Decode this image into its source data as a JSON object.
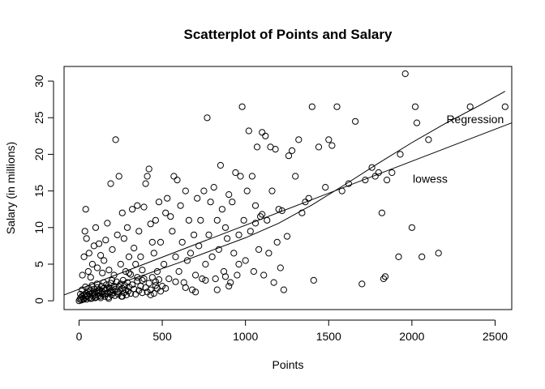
{
  "chart_data": {
    "type": "scatter",
    "title": "Scatterplot of Points and Salary",
    "xlabel": "Points",
    "ylabel": "Salary (in millions)",
    "xlim": [
      -90,
      2600
    ],
    "ylim": [
      -1.2,
      32.0
    ],
    "x_ticks": [
      0,
      500,
      1000,
      1500,
      2000,
      2500
    ],
    "y_ticks": [
      0,
      5,
      10,
      15,
      20,
      25,
      30
    ],
    "annotations": [
      {
        "text": "Regression",
        "x": 2380,
        "y": 24.8
      },
      {
        "text": "lowess",
        "x": 2110,
        "y": 16.7
      }
    ],
    "regression_line": [
      [
        -90,
        0.8
      ],
      [
        2600,
        24.3
      ]
    ],
    "lowess_line": [
      [
        0,
        0.9
      ],
      [
        200,
        2.1
      ],
      [
        400,
        3.6
      ],
      [
        600,
        5.2
      ],
      [
        800,
        6.9
      ],
      [
        1000,
        8.6
      ],
      [
        1200,
        10.6
      ],
      [
        1400,
        13.1
      ],
      [
        1600,
        15.9
      ],
      [
        1800,
        18.8
      ],
      [
        2000,
        21.6
      ],
      [
        2200,
        24.2
      ],
      [
        2400,
        26.6
      ],
      [
        2560,
        28.6
      ]
    ],
    "points": [
      [
        0,
        0
      ],
      [
        5,
        0.2
      ],
      [
        10,
        0.4
      ],
      [
        15,
        0.1
      ],
      [
        20,
        0.6
      ],
      [
        25,
        0.3
      ],
      [
        30,
        0.8
      ],
      [
        35,
        0.5
      ],
      [
        40,
        1.0
      ],
      [
        45,
        0.2
      ],
      [
        50,
        0.7
      ],
      [
        55,
        1.2
      ],
      [
        60,
        0.4
      ],
      [
        65,
        0.9
      ],
      [
        70,
        1.4
      ],
      [
        75,
        0.3
      ],
      [
        80,
        1.1
      ],
      [
        85,
        0.6
      ],
      [
        90,
        1.6
      ],
      [
        95,
        0.8
      ],
      [
        100,
        0.5
      ],
      [
        105,
        1.3
      ],
      [
        110,
        1.8
      ],
      [
        115,
        0.7
      ],
      [
        120,
        1.0
      ],
      [
        125,
        1.5
      ],
      [
        130,
        0.4
      ],
      [
        135,
        2.0
      ],
      [
        140,
        1.2
      ],
      [
        145,
        0.9
      ],
      [
        150,
        1.7
      ],
      [
        155,
        0.6
      ],
      [
        160,
        1.4
      ],
      [
        165,
        2.2
      ],
      [
        170,
        1.0
      ],
      [
        175,
        0.5
      ],
      [
        180,
        1.8
      ],
      [
        185,
        1.3
      ],
      [
        190,
        2.4
      ],
      [
        195,
        0.8
      ],
      [
        200,
        1.5
      ],
      [
        205,
        1.1
      ],
      [
        210,
        2.0
      ],
      [
        215,
        0.7
      ],
      [
        220,
        1.6
      ],
      [
        225,
        2.6
      ],
      [
        230,
        1.2
      ],
      [
        235,
        0.9
      ],
      [
        240,
        1.9
      ],
      [
        245,
        1.4
      ],
      [
        250,
        2.3
      ],
      [
        255,
        0.6
      ],
      [
        260,
        1.7
      ],
      [
        265,
        2.8
      ],
      [
        270,
        1.1
      ],
      [
        275,
        2.1
      ],
      [
        280,
        1.5
      ],
      [
        285,
        0.8
      ],
      [
        290,
        2.5
      ],
      [
        295,
        1.3
      ],
      [
        300,
        1.9
      ],
      [
        310,
        1.0
      ],
      [
        320,
        2.2
      ],
      [
        330,
        1.6
      ],
      [
        340,
        0.9
      ],
      [
        350,
        2.7
      ],
      [
        360,
        1.4
      ],
      [
        370,
        2.0
      ],
      [
        380,
        1.1
      ],
      [
        390,
        3.0
      ],
      [
        400,
        1.8
      ],
      [
        410,
        1.2
      ],
      [
        420,
        2.4
      ],
      [
        430,
        1.5
      ],
      [
        440,
        3.2
      ],
      [
        450,
        1.0
      ],
      [
        460,
        2.1
      ],
      [
        470,
        1.7
      ],
      [
        480,
        2.9
      ],
      [
        490,
        1.3
      ],
      [
        8,
        0.9
      ],
      [
        18,
        1.5
      ],
      [
        28,
        0.2
      ],
      [
        38,
        1.9
      ],
      [
        48,
        0.6
      ],
      [
        58,
        1.7
      ],
      [
        68,
        0.3
      ],
      [
        78,
        2.1
      ],
      [
        88,
        1.0
      ],
      [
        98,
        0.4
      ],
      [
        108,
        2.3
      ],
      [
        118,
        1.4
      ],
      [
        128,
        0.6
      ],
      [
        138,
        1.0
      ],
      [
        148,
        2.5
      ],
      [
        158,
        0.9
      ],
      [
        168,
        1.7
      ],
      [
        178,
        0.3
      ],
      [
        188,
        1.2
      ],
      [
        198,
        2.8
      ],
      [
        20,
        3.5
      ],
      [
        30,
        6.0
      ],
      [
        35,
        9.5
      ],
      [
        40,
        12.5
      ],
      [
        45,
        8.5
      ],
      [
        55,
        4.0
      ],
      [
        60,
        6.5
      ],
      [
        70,
        3.2
      ],
      [
        80,
        5.0
      ],
      [
        90,
        7.5
      ],
      [
        100,
        10.0
      ],
      [
        110,
        4.5
      ],
      [
        120,
        7.8
      ],
      [
        130,
        6.2
      ],
      [
        140,
        3.8
      ],
      [
        150,
        5.5
      ],
      [
        160,
        8.3
      ],
      [
        170,
        10.6
      ],
      [
        180,
        4.2
      ],
      [
        190,
        16.0
      ],
      [
        200,
        7.0
      ],
      [
        210,
        3.5
      ],
      [
        220,
        22.0
      ],
      [
        230,
        9.0
      ],
      [
        240,
        17.0
      ],
      [
        250,
        5.0
      ],
      [
        260,
        12.0
      ],
      [
        270,
        8.5
      ],
      [
        280,
        4.0
      ],
      [
        290,
        10.0
      ],
      [
        300,
        6.0
      ],
      [
        310,
        3.6
      ],
      [
        320,
        12.5
      ],
      [
        330,
        7.2
      ],
      [
        340,
        5.0
      ],
      [
        350,
        13.0
      ],
      [
        360,
        9.5
      ],
      [
        370,
        6.0
      ],
      [
        380,
        4.2
      ],
      [
        390,
        12.8
      ],
      [
        400,
        16.0
      ],
      [
        410,
        17.0
      ],
      [
        420,
        18.0
      ],
      [
        430,
        10.5
      ],
      [
        440,
        8.0
      ],
      [
        450,
        6.5
      ],
      [
        460,
        11.0
      ],
      [
        470,
        4.0
      ],
      [
        480,
        13.5
      ],
      [
        490,
        8.0
      ],
      [
        500,
        2.0
      ],
      [
        510,
        5.0
      ],
      [
        520,
        12.0
      ],
      [
        530,
        14.0
      ],
      [
        540,
        3.0
      ],
      [
        550,
        11.5
      ],
      [
        560,
        9.5
      ],
      [
        570,
        17.0
      ],
      [
        580,
        6.0
      ],
      [
        590,
        16.5
      ],
      [
        600,
        4.0
      ],
      [
        610,
        13.0
      ],
      [
        620,
        8.0
      ],
      [
        630,
        2.5
      ],
      [
        640,
        15.0
      ],
      [
        650,
        5.5
      ],
      [
        660,
        11.0
      ],
      [
        670,
        6.5
      ],
      [
        680,
        1.5
      ],
      [
        690,
        9.0
      ],
      [
        700,
        3.5
      ],
      [
        710,
        14.0
      ],
      [
        720,
        7.5
      ],
      [
        730,
        11.0
      ],
      [
        740,
        3.0
      ],
      [
        750,
        15.0
      ],
      [
        760,
        5.0
      ],
      [
        770,
        25.0
      ],
      [
        780,
        9.0
      ],
      [
        790,
        13.5
      ],
      [
        800,
        6.0
      ],
      [
        810,
        15.5
      ],
      [
        820,
        3.0
      ],
      [
        830,
        11.0
      ],
      [
        840,
        7.0
      ],
      [
        850,
        18.5
      ],
      [
        860,
        12.5
      ],
      [
        870,
        4.0
      ],
      [
        880,
        10.0
      ],
      [
        890,
        8.5
      ],
      [
        900,
        14.5
      ],
      [
        910,
        2.5
      ],
      [
        920,
        13.5
      ],
      [
        930,
        6.5
      ],
      [
        940,
        17.5
      ],
      [
        950,
        3.5
      ],
      [
        960,
        9.0
      ],
      [
        970,
        17.0
      ],
      [
        980,
        26.5
      ],
      [
        990,
        11.0
      ],
      [
        1000,
        5.5
      ],
      [
        1010,
        15.0
      ],
      [
        1020,
        23.2
      ],
      [
        1030,
        9.5
      ],
      [
        1040,
        17.0
      ],
      [
        1050,
        4.0
      ],
      [
        1060,
        13.0
      ],
      [
        1070,
        21.0
      ],
      [
        1080,
        7.0
      ],
      [
        1090,
        11.5
      ],
      [
        1100,
        23.0
      ],
      [
        1110,
        3.5
      ],
      [
        1120,
        22.5
      ],
      [
        1130,
        11.0
      ],
      [
        1140,
        6.5
      ],
      [
        1150,
        21.0
      ],
      [
        1160,
        15.0
      ],
      [
        1170,
        2.5
      ],
      [
        1180,
        20.7
      ],
      [
        1190,
        8.0
      ],
      [
        1200,
        12.5
      ],
      [
        1210,
        4.5
      ],
      [
        1220,
        12.3
      ],
      [
        1230,
        1.5
      ],
      [
        1250,
        8.8
      ],
      [
        1260,
        19.8
      ],
      [
        1280,
        20.5
      ],
      [
        1300,
        17.0
      ],
      [
        1320,
        22.0
      ],
      [
        1340,
        12.0
      ],
      [
        1360,
        13.5
      ],
      [
        1380,
        14.0
      ],
      [
        1400,
        26.5
      ],
      [
        1410,
        2.8
      ],
      [
        1440,
        21.0
      ],
      [
        1480,
        15.5
      ],
      [
        1500,
        22.0
      ],
      [
        1520,
        21.2
      ],
      [
        1550,
        26.5
      ],
      [
        1580,
        15.0
      ],
      [
        1620,
        16.0
      ],
      [
        1660,
        24.5
      ],
      [
        1700,
        2.3
      ],
      [
        1720,
        16.5
      ],
      [
        1760,
        18.2
      ],
      [
        1780,
        17.0
      ],
      [
        1800,
        17.5
      ],
      [
        1820,
        12.0
      ],
      [
        1830,
        3.0
      ],
      [
        1840,
        3.3
      ],
      [
        1850,
        16.5
      ],
      [
        1880,
        17.5
      ],
      [
        1920,
        6.0
      ],
      [
        1960,
        31.0
      ],
      [
        2000,
        10.0
      ],
      [
        2020,
        26.5
      ],
      [
        2030,
        24.3
      ],
      [
        2060,
        6.0
      ],
      [
        2100,
        22.0
      ],
      [
        2160,
        6.5
      ],
      [
        2350,
        26.5
      ],
      [
        2560,
        26.5
      ],
      [
        1930,
        20.0
      ],
      [
        1100,
        11.8
      ],
      [
        1060,
        10.6
      ],
      [
        960,
        5.0
      ],
      [
        900,
        2.0
      ],
      [
        880,
        3.3
      ],
      [
        830,
        1.5
      ],
      [
        760,
        2.8
      ],
      [
        700,
        1.2
      ],
      [
        640,
        1.8
      ],
      [
        580,
        2.6
      ],
      [
        520,
        1.7
      ],
      [
        460,
        2.6
      ],
      [
        430,
        0.8
      ],
      [
        380,
        2.8
      ],
      [
        350,
        3.2
      ],
      [
        300,
        3.8
      ],
      [
        260,
        0.6
      ]
    ]
  }
}
